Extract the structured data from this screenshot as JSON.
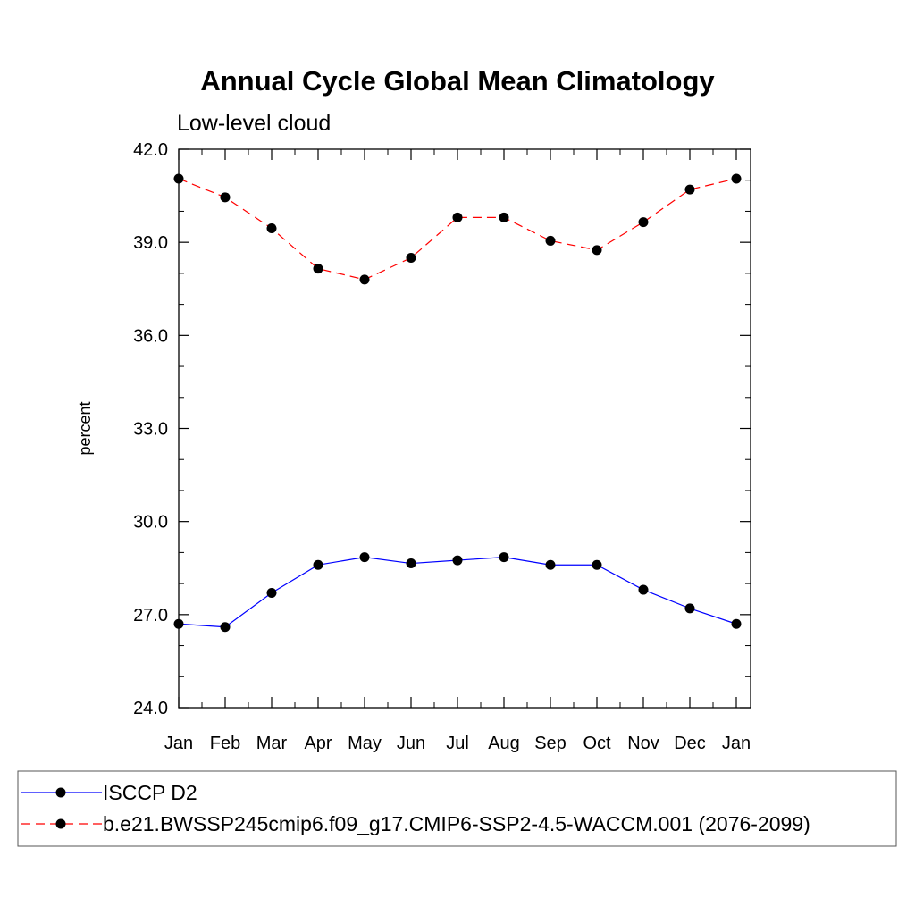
{
  "chart_data": {
    "type": "line",
    "title": "Annual Cycle Global Mean Climatology",
    "subtitle": "Low-level cloud",
    "xlabel": "",
    "ylabel": "percent",
    "categories": [
      "Jan",
      "Feb",
      "Mar",
      "Apr",
      "May",
      "Jun",
      "Jul",
      "Aug",
      "Sep",
      "Oct",
      "Nov",
      "Dec",
      "Jan"
    ],
    "ylim": [
      24.0,
      42.0
    ],
    "yticks": [
      "24.0",
      "27.0",
      "30.0",
      "33.0",
      "36.0",
      "39.0",
      "42.0"
    ],
    "grid": false,
    "legend_position": "bottom",
    "series": [
      {
        "name": "ISCCP D2",
        "color": "#0000ff",
        "line_style": "solid",
        "marker": "filled-circle",
        "values": [
          26.7,
          26.6,
          27.7,
          28.6,
          28.85,
          28.65,
          28.75,
          28.85,
          28.6,
          28.6,
          27.8,
          27.2,
          26.7
        ]
      },
      {
        "name": "b.e21.BWSSP245cmip6.f09_g17.CMIP6-SSP2-4.5-WACCM.001 (2076-2099)",
        "color": "#ff0000",
        "line_style": "dashed",
        "marker": "filled-circle",
        "values": [
          41.05,
          40.45,
          39.45,
          38.15,
          37.8,
          38.5,
          39.8,
          39.8,
          39.05,
          38.75,
          39.65,
          40.7,
          41.05
        ]
      }
    ]
  }
}
